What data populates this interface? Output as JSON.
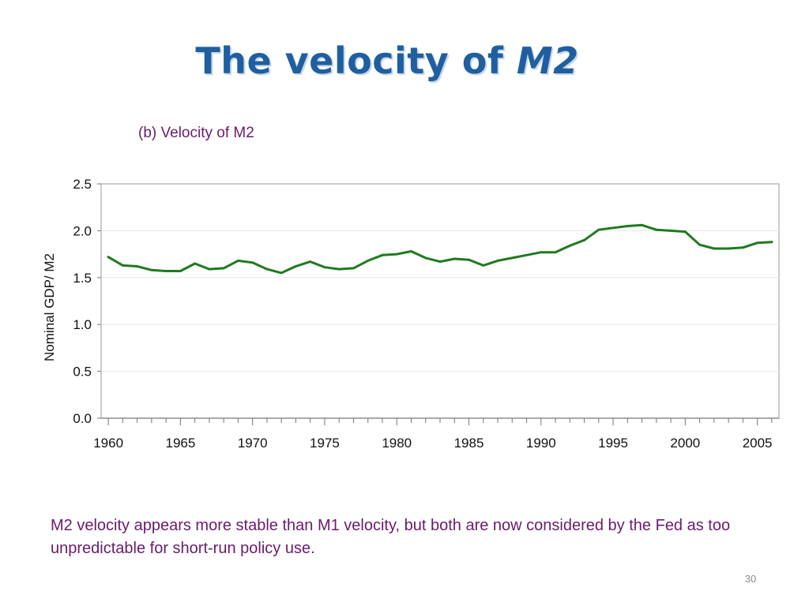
{
  "slide": {
    "title_plain": "The velocity of ",
    "title_italic": "M2",
    "subtitle": "(b) Velocity of M2",
    "caption": "M2 velocity appears more stable than M1 velocity, but both are now considered by the Fed as too unpredictable for short-run policy use.",
    "page_number": "30"
  },
  "chart_data": {
    "type": "line",
    "title": "(b) Velocity of M2",
    "xlabel": "",
    "ylabel": "Nominal GDP/ M2",
    "xlim": [
      1960,
      2006
    ],
    "ylim": [
      0.0,
      2.5
    ],
    "x_ticks": [
      "1960",
      "1965",
      "1970",
      "1975",
      "1980",
      "1985",
      "1990",
      "1995",
      "2000",
      "2005"
    ],
    "y_ticks": [
      "0.0",
      "0.5",
      "1.0",
      "1.5",
      "2.0",
      "2.5"
    ],
    "grid": true,
    "legend": "none",
    "series": [
      {
        "color": "#1f7a1f",
        "x": [
          1960,
          1961,
          1962,
          1963,
          1964,
          1965,
          1966,
          1967,
          1968,
          1969,
          1970,
          1971,
          1972,
          1973,
          1974,
          1975,
          1976,
          1977,
          1978,
          1979,
          1980,
          1981,
          1982,
          1983,
          1984,
          1985,
          1986,
          1987,
          1988,
          1989,
          1990,
          1991,
          1992,
          1993,
          1994,
          1995,
          1996,
          1997,
          1998,
          1999,
          2000,
          2001,
          2002,
          2003,
          2004,
          2005,
          2006
        ],
        "values": [
          1.72,
          1.63,
          1.62,
          1.58,
          1.57,
          1.57,
          1.65,
          1.59,
          1.6,
          1.68,
          1.66,
          1.59,
          1.55,
          1.62,
          1.67,
          1.61,
          1.59,
          1.6,
          1.68,
          1.74,
          1.75,
          1.78,
          1.71,
          1.67,
          1.7,
          1.69,
          1.63,
          1.68,
          1.71,
          1.74,
          1.77,
          1.77,
          1.84,
          1.9,
          2.01,
          2.03,
          2.05,
          2.06,
          2.01,
          2.0,
          1.99,
          1.85,
          1.81,
          1.81,
          1.82,
          1.87,
          1.88
        ]
      }
    ]
  }
}
